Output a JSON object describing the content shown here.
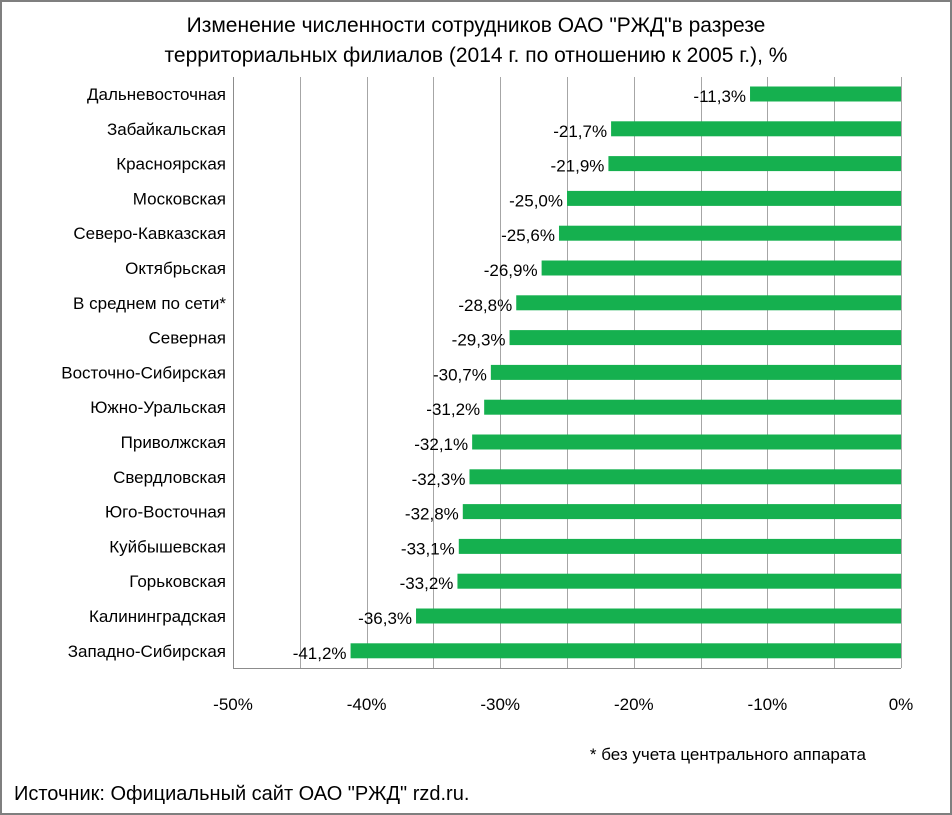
{
  "chart_data": {
    "type": "bar",
    "orientation": "horizontal",
    "title": [
      "Изменение численности сотрудников ОАО \"РЖД\"в разрезе",
      "территориальных филиалов  (2014 г. по отношению к 2005 г.), %"
    ],
    "categories": [
      "Дальневосточная",
      "Забайкальская",
      "Красноярская",
      "Московская",
      "Северо-Кавказская",
      "Октябрьская",
      "В среднем по сети*",
      "Северная",
      "Восточно-Сибирская",
      "Южно-Уральская",
      "Приволжская",
      "Свердловская",
      "Юго-Восточная",
      "Куйбышевская",
      "Горьковская",
      "Калининградская",
      "Западно-Сибирская"
    ],
    "values": [
      -11.3,
      -21.7,
      -21.9,
      -25.0,
      -25.6,
      -26.9,
      -28.8,
      -29.3,
      -30.7,
      -31.2,
      -32.1,
      -32.3,
      -32.8,
      -33.1,
      -33.2,
      -36.3,
      -41.2
    ],
    "data_labels": [
      "-11,3%",
      "-21,7%",
      "-21,9%",
      "-25,0%",
      "-25,6%",
      "-26,9%",
      "-28,8%",
      "-29,3%",
      "-30,7%",
      "-31,2%",
      "-32,1%",
      "-32,3%",
      "-32,8%",
      "-33,1%",
      "-33,2%",
      "-36,3%",
      "-41,2%"
    ],
    "xlim": [
      -50,
      0
    ],
    "x_ticks": [
      -50,
      -40,
      -30,
      -20,
      -10,
      0
    ],
    "x_tick_labels": [
      "-50%",
      "-40%",
      "-30%",
      "-20%",
      "-10%",
      "0%"
    ],
    "grid": "vertical",
    "legend": "none",
    "bar_color": "#15b04f",
    "gridline_color": "#a6a6a6",
    "footnote": "* без учета центрального аппарата"
  },
  "source": "Источник: Официальный сайт ОАО \"РЖД\" rzd.ru."
}
